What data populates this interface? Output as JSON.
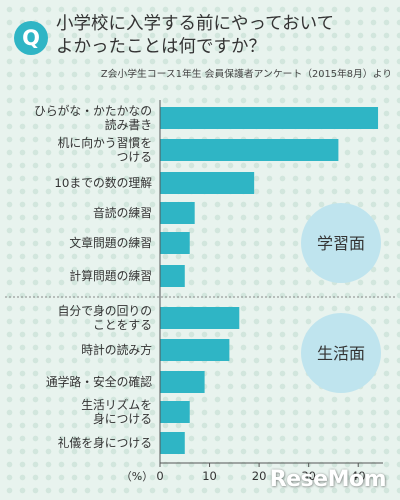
{
  "header": {
    "badge": "Q",
    "question_lines": [
      "小学校に入学する前にやっておいて",
      "よかったことは何ですか？"
    ],
    "source": "Z会小学生コース1年生 会員保護者アンケート（2015年8月）より"
  },
  "colors": {
    "bar": "#2fb5c5",
    "group_circle": "#bfe4ee",
    "divider": "#888888",
    "axis": "#555555"
  },
  "chart_data": {
    "type": "bar",
    "orientation": "horizontal",
    "categories": [
      [
        "ひらがな・かたかなの",
        "読み書き"
      ],
      [
        "机に向かう習慣を",
        "つける"
      ],
      [
        "10までの数の理解"
      ],
      [
        "音読の練習"
      ],
      [
        "文章問題の練習"
      ],
      [
        "計算問題の練習"
      ],
      [
        "自分で身の回りの",
        "ことをする"
      ],
      [
        "時計の読み方"
      ],
      [
        "通学路・安全の確認"
      ],
      [
        "生活リズムを",
        "身につける"
      ],
      [
        "礼儀を身につける"
      ]
    ],
    "values": [
      44,
      36,
      19,
      7,
      6,
      5,
      16,
      14,
      9,
      6,
      5
    ],
    "groups": [
      {
        "label": "学習面",
        "from": 0,
        "to": 5
      },
      {
        "label": "生活面",
        "from": 6,
        "to": 10
      }
    ],
    "xlim": [
      0,
      45
    ],
    "xticks": [
      0,
      10,
      20,
      30,
      40
    ],
    "xlabel": "（%）",
    "grid": false
  },
  "footer": {
    "logo": "ReseMom"
  }
}
